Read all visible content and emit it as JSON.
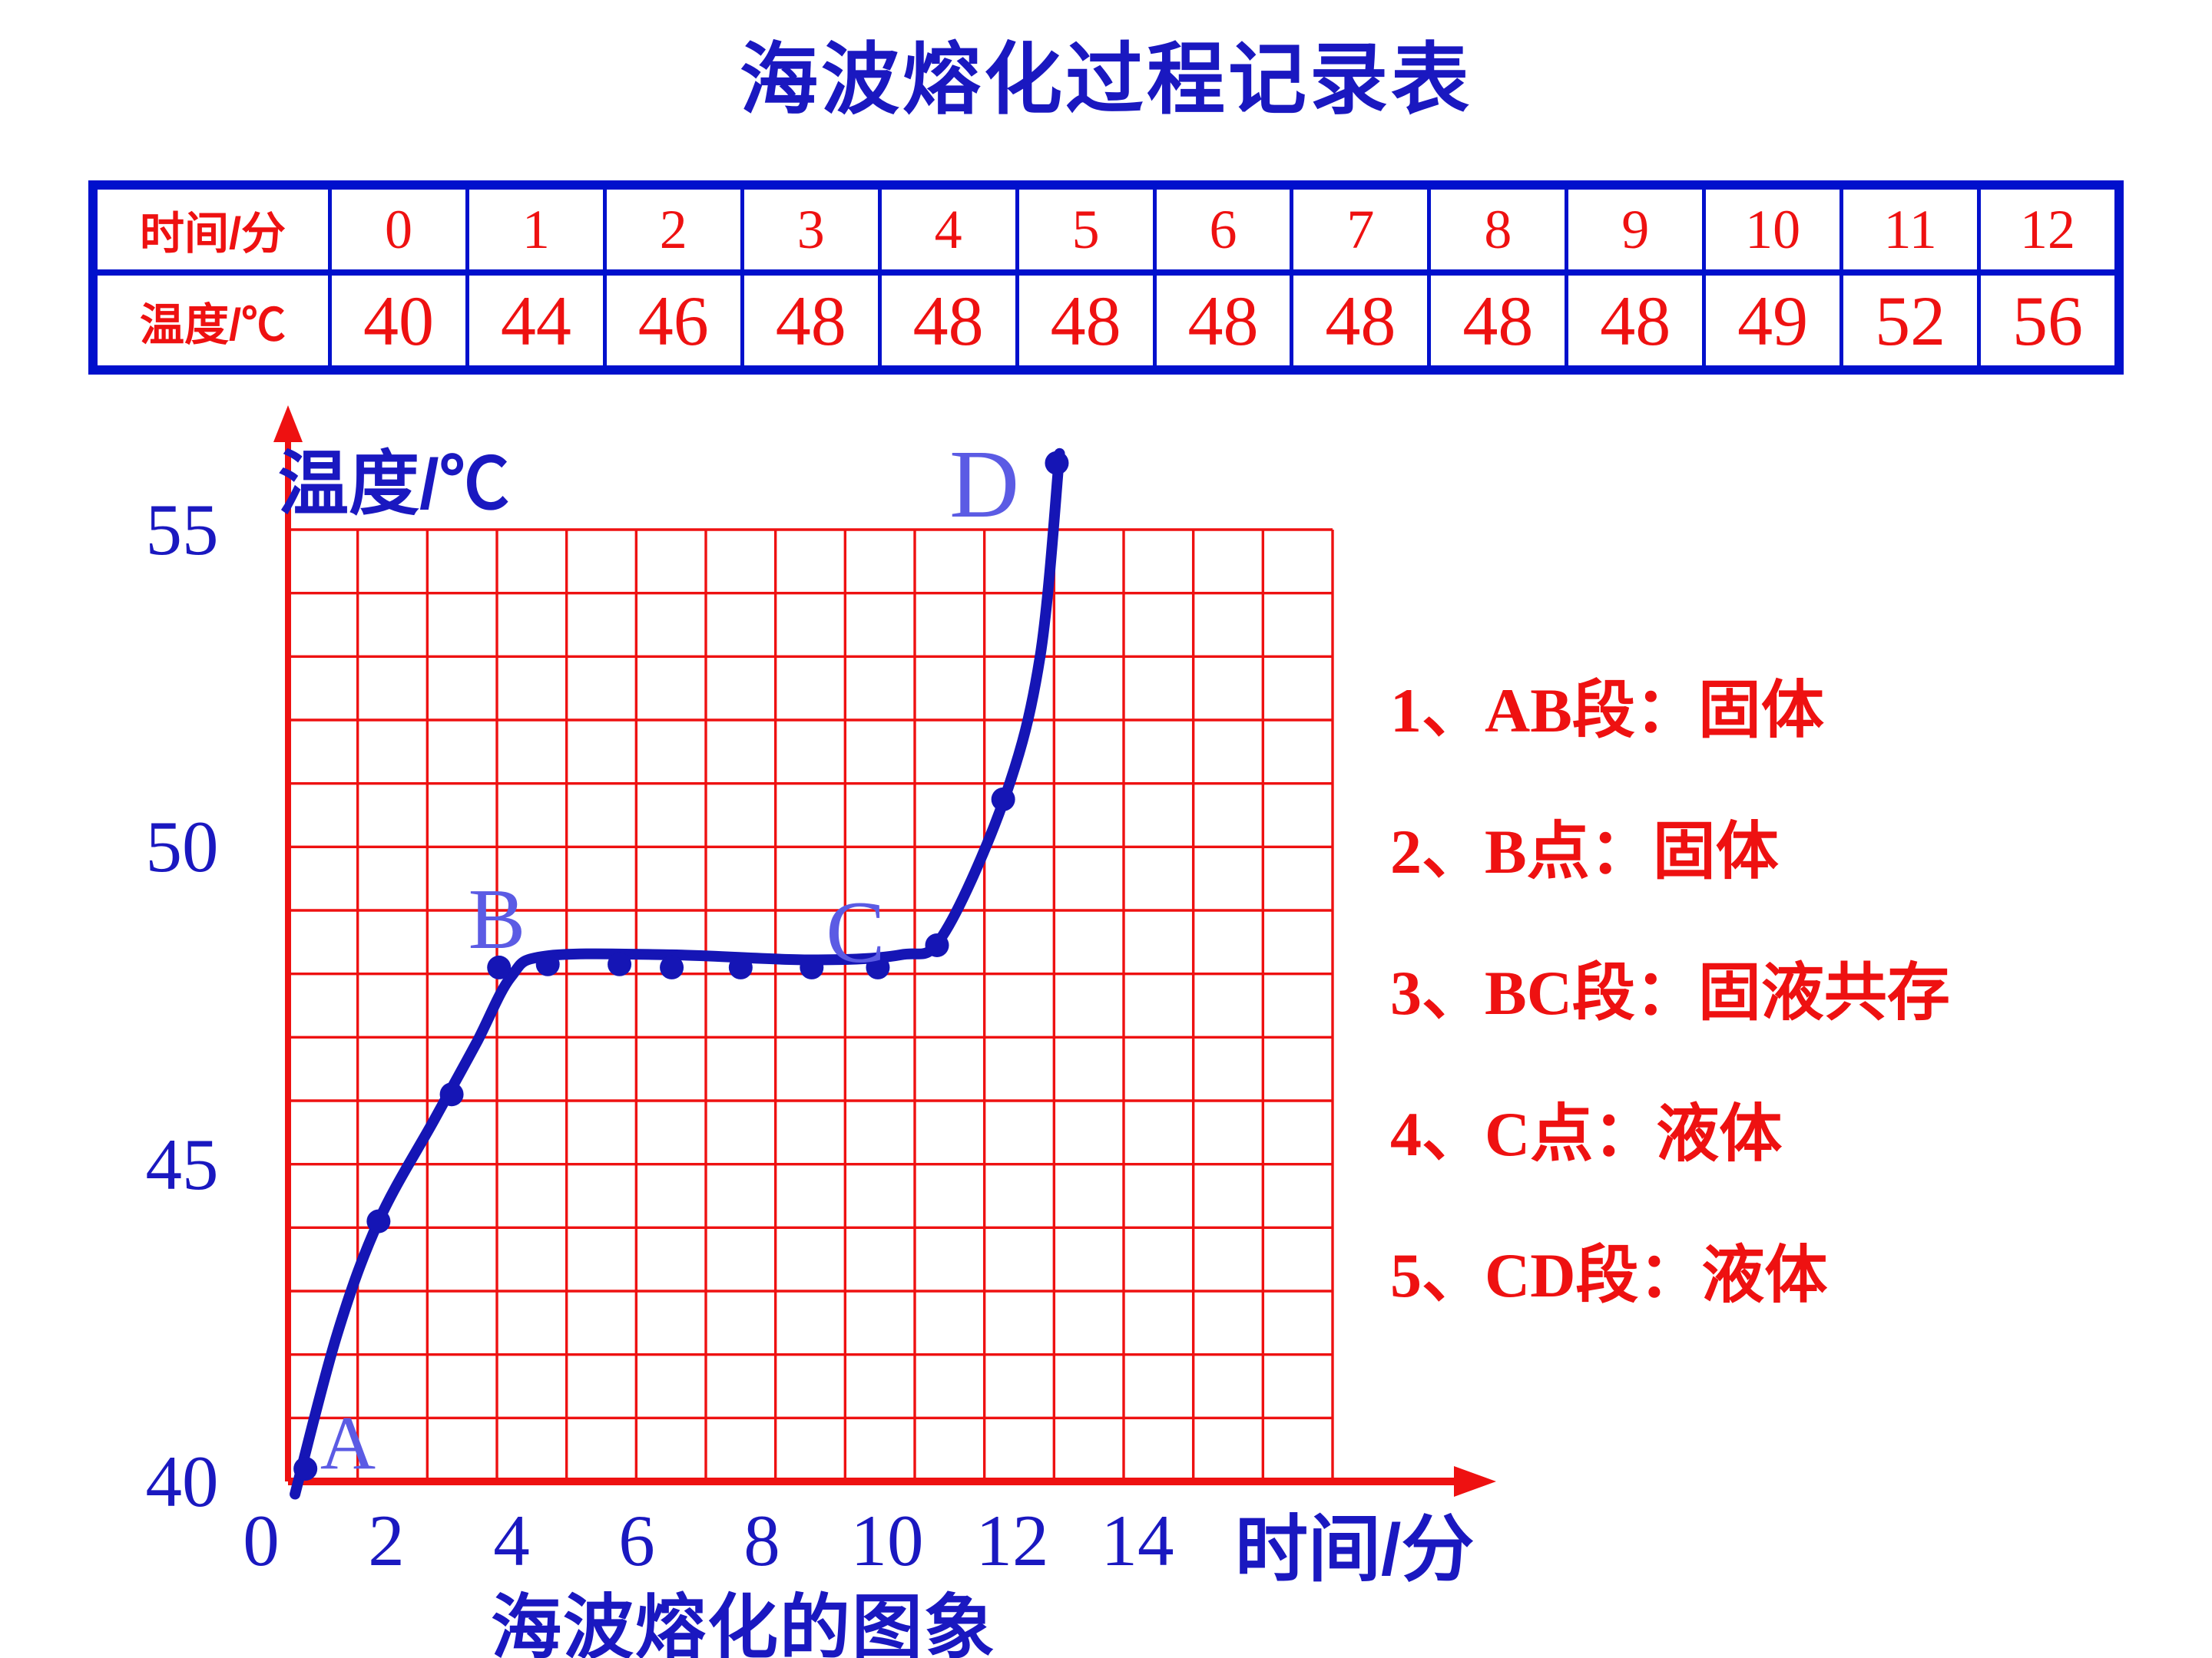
{
  "title": "海波熔化过程记录表",
  "colors": {
    "title_blue": "#1a18c0",
    "label_blue": "#5b5be4",
    "red": "#ee1111",
    "table_border_blue": "#0010cc",
    "curve_blue": "#1515b5"
  },
  "table": {
    "row1_label": "时间/分",
    "row2_label": "温度/℃",
    "times": [
      "0",
      "1",
      "2",
      "3",
      "4",
      "5",
      "6",
      "7",
      "8",
      "9",
      "10",
      "11",
      "12"
    ],
    "temps": [
      "40",
      "44",
      "46",
      "48",
      "48",
      "48",
      "48",
      "48",
      "48",
      "48",
      "49",
      "52",
      "56"
    ]
  },
  "annotations": [
    "1、AB段：固体",
    "2、B点：固体",
    "3、BC段：固液共存",
    "4、C点：液体",
    "5、CD段：液体"
  ],
  "chart_data": {
    "type": "line",
    "title": "海波熔化的图象",
    "xlabel": "时间/分",
    "ylabel": "温度/℃",
    "x": [
      0,
      1,
      2,
      3,
      4,
      5,
      6,
      7,
      8,
      9,
      10,
      11,
      12
    ],
    "series": [
      {
        "name": "温度/℃",
        "values": [
          40,
          44,
          46,
          48,
          48,
          48,
          48,
          48,
          48,
          48,
          49,
          52,
          56
        ]
      }
    ],
    "xlim": [
      0,
      15
    ],
    "ylim": [
      40,
      55
    ],
    "grid": true,
    "x_ticks": [
      "0",
      "2",
      "4",
      "6",
      "8",
      "10",
      "12",
      "14"
    ],
    "y_ticks": [
      "55",
      "50",
      "45",
      "40"
    ],
    "y_tick_values": [
      55,
      50,
      45,
      40
    ],
    "plotted_dots": [
      [
        0.25,
        40.2
      ],
      [
        1.3,
        44.1
      ],
      [
        2.35,
        46.1
      ],
      [
        3.03,
        48.1
      ],
      [
        3.73,
        48.15
      ],
      [
        4.76,
        48.15
      ],
      [
        5.51,
        48.1
      ],
      [
        6.5,
        48.1
      ],
      [
        7.52,
        48.1
      ],
      [
        8.47,
        48.1
      ],
      [
        9.32,
        48.45
      ],
      [
        10.27,
        50.75
      ],
      [
        11.04,
        56.05
      ]
    ],
    "curve_points": [
      [
        0.1,
        39.8
      ],
      [
        0.7,
        42.3
      ],
      [
        1.3,
        44.1
      ],
      [
        2.1,
        45.7
      ],
      [
        2.7,
        46.9
      ],
      [
        3.2,
        47.95
      ],
      [
        3.7,
        48.28
      ],
      [
        5.5,
        48.3
      ],
      [
        7.5,
        48.22
      ],
      [
        8.8,
        48.3
      ],
      [
        9.4,
        48.6
      ],
      [
        10.3,
        50.8
      ],
      [
        10.8,
        53.0
      ],
      [
        11.08,
        56.2
      ]
    ],
    "point_labels": [
      {
        "text": "A",
        "t": 0.86,
        "T": 40.6,
        "size": 100
      },
      {
        "text": "B",
        "t": 3.0,
        "T": 48.85,
        "size": 112
      },
      {
        "text": "C",
        "t": 8.15,
        "T": 48.65,
        "size": 116
      },
      {
        "text": "D",
        "t": 10.0,
        "T": 55.7,
        "size": 126
      }
    ]
  }
}
